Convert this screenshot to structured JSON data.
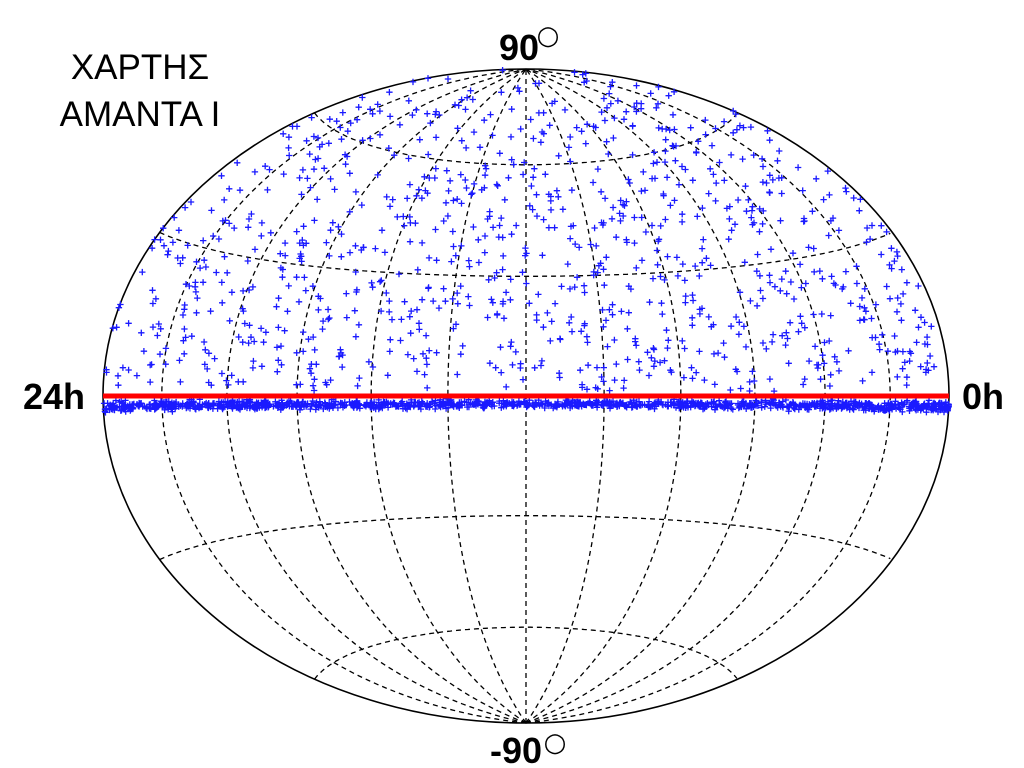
{
  "title": {
    "line1": "ΧΑΡΤΗΣ",
    "line2": "AMANTA I"
  },
  "labels": {
    "top": "90",
    "bottom": "-90",
    "degree_symbol": "○",
    "left": "24h",
    "right": "0h"
  },
  "colors": {
    "points": "#1a1aff",
    "equator_line": "#ff0000",
    "grid": "#000000",
    "outline": "#000000"
  },
  "chart_data": {
    "type": "scatter",
    "projection": "hammer-aitoff",
    "marker": "plus",
    "grid": true,
    "ra_range_h": [
      0,
      24
    ],
    "ra_direction": "0h on the right, 24h on the left",
    "dec_range_deg": [
      -90,
      90
    ],
    "meridian_spacing_h": 2,
    "parallels_deg": [
      -60,
      -30,
      30,
      60
    ],
    "reference_line": {
      "type": "horizontal",
      "dec_deg": 0
    },
    "point_groups": [
      {
        "description": "dense band just below the equator",
        "ra_range_h": [
          0,
          24
        ],
        "dec_range_deg": [
          -3.5,
          -0.5
        ],
        "count": 1300
      },
      {
        "description": "scattered points in the northern sky",
        "ra_range_h": [
          0,
          24
        ],
        "dec_range_deg": [
          1,
          88
        ],
        "count": 1000
      }
    ]
  }
}
